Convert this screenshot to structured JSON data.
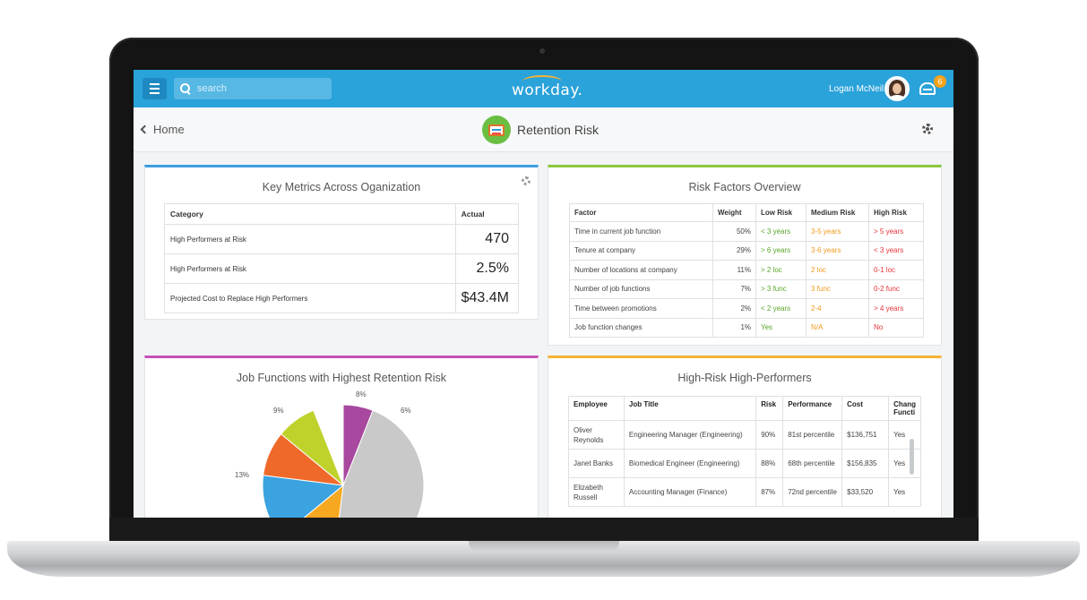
{
  "header": {
    "search_placeholder": "search",
    "logo": "workday.",
    "user_name": "Logan McNeil",
    "notification_count": "6"
  },
  "subheader": {
    "back_label": "Home",
    "title": "Retention Risk"
  },
  "key_metrics": {
    "title": "Key Metrics Across Oganization",
    "columns": [
      "Category",
      "Actual"
    ],
    "rows": [
      {
        "category": "High Performers at Risk",
        "actual": "470"
      },
      {
        "category": "High Performers at Risk",
        "actual": "2.5%"
      },
      {
        "category": "Projected Cost to Replace High Performers",
        "actual": "$43.4M"
      }
    ]
  },
  "risk_factors": {
    "title": "Risk Factors Overview",
    "columns": [
      "Factor",
      "Weight",
      "Low Risk",
      "Medium Risk",
      "High Risk"
    ],
    "rows": [
      {
        "factor": "Time in current job function",
        "weight": "50%",
        "low": "< 3 years",
        "medium": "3-5 years",
        "high": "> 5 years"
      },
      {
        "factor": "Tenure at company",
        "weight": "29%",
        "low": "> 6 years",
        "medium": "3-6 years",
        "high": "< 3 years"
      },
      {
        "factor": "Number of locations at company",
        "weight": "11%",
        "low": "> 2 loc",
        "medium": "2 loc",
        "high": "0-1 loc"
      },
      {
        "factor": "Number of job functions",
        "weight": "7%",
        "low": "> 3 func",
        "medium": "3 func",
        "high": "0-2 func"
      },
      {
        "factor": "Time between promotions",
        "weight": "2%",
        "low": "< 2 years",
        "medium": "2-4",
        "high": "> 4 years"
      },
      {
        "factor": "Job function changes",
        "weight": "1%",
        "low": "Yes",
        "medium": "N/A",
        "high": "No"
      }
    ]
  },
  "job_functions": {
    "title": "Job Functions with Highest Retention Risk",
    "colors": {
      "gray": "#c9c9c9",
      "purple": "#a8489e",
      "lime": "#bfd22b",
      "orange": "#ef6a2a",
      "blue": "#3aa3e0",
      "yellow": "#f7a821"
    },
    "chart_data": {
      "type": "pie",
      "slices": [
        {
          "label": "6%",
          "value": 6
        },
        {
          "label": "8%",
          "value": 8
        },
        {
          "label": "9%",
          "value": 9
        },
        {
          "label": "13%",
          "value": 13
        }
      ]
    }
  },
  "high_performers": {
    "title": "High-Risk High-Performers",
    "columns": [
      "Employee",
      "Job Title",
      "Risk",
      "Performance",
      "Cost",
      "Chang Functi"
    ],
    "rows": [
      {
        "employee": "Oliver Reynolds",
        "title": "Engineering Manager (Engineering)",
        "risk": "90%",
        "performance": "81st percentile",
        "cost": "$136,751",
        "change": "Yes"
      },
      {
        "employee": "Janet Banks",
        "title": "Biomedical Engineer (Engineering)",
        "risk": "88%",
        "performance": "68th percentile",
        "cost": "$156,835",
        "change": "Yes"
      },
      {
        "employee": "Elizabeth Russell",
        "title": "Accounting Manager (Finance)",
        "risk": "87%",
        "performance": "72nd percentile",
        "cost": "$33,520",
        "change": "Yes"
      }
    ]
  }
}
